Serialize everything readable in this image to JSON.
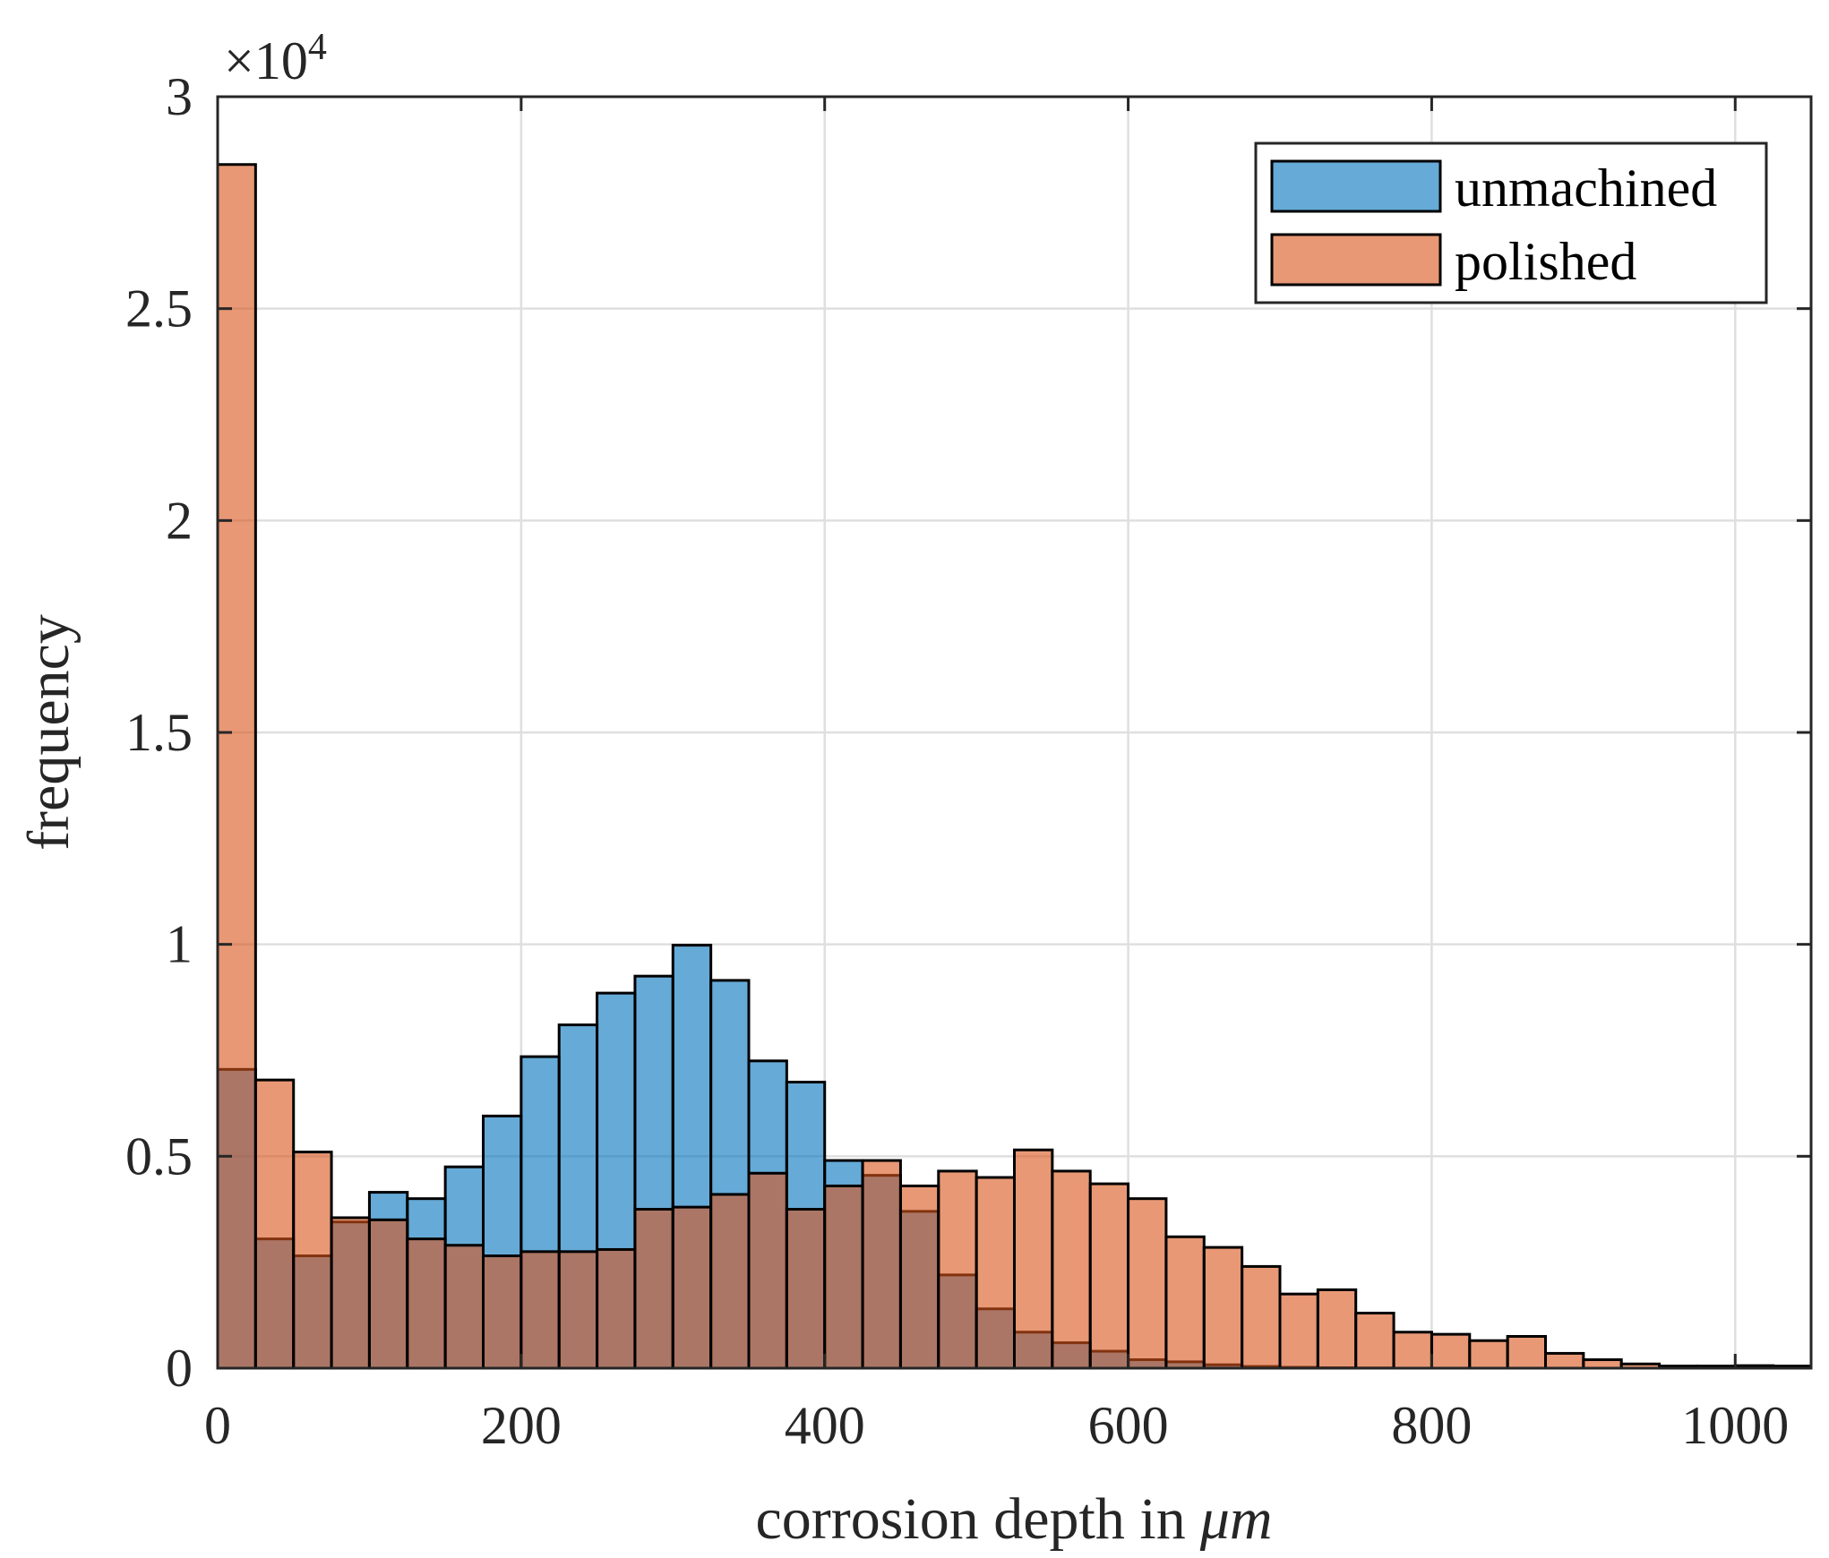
{
  "chart_data": {
    "type": "bar",
    "subtype": "overlaid-histogram",
    "xlabel": "corrosion depth in",
    "xlabel_unit": "μm",
    "ylabel": "frequency",
    "xlim": [
      0,
      1050
    ],
    "ylim": [
      0,
      30000
    ],
    "y_multiplier_base": "×10",
    "y_multiplier_exp": "4",
    "xticks": [
      0,
      200,
      400,
      600,
      800,
      1000
    ],
    "yticks": [
      0,
      5000,
      10000,
      15000,
      20000,
      25000,
      30000
    ],
    "xtick_labels": [
      "0",
      "200",
      "400",
      "600",
      "800",
      "1000"
    ],
    "ytick_labels": [
      "0",
      "0.5",
      "1",
      "1.5",
      "2",
      "2.5",
      "3"
    ],
    "grid": true,
    "legend_position": "top-right",
    "bin_width": 25,
    "bin_edges_start": 0,
    "series": [
      {
        "name": "unmachined",
        "color": "#0072BD",
        "opacity": 0.6,
        "values": [
          7050,
          3050,
          2650,
          3450,
          4150,
          4000,
          4750,
          5950,
          7350,
          8100,
          8850,
          9250,
          9980,
          9150,
          7250,
          6750,
          4900,
          4550,
          3700,
          2200,
          1400,
          850,
          600,
          400,
          200,
          150,
          80,
          40,
          20,
          10,
          5,
          0,
          0,
          0,
          0,
          0,
          0,
          0,
          0,
          0,
          0,
          0
        ]
      },
      {
        "name": "polished",
        "color": "#D95319",
        "opacity": 0.6,
        "values": [
          28400,
          6800,
          5100,
          3550,
          3500,
          3050,
          2900,
          2650,
          2750,
          2750,
          2800,
          3750,
          3800,
          4100,
          4600,
          3750,
          4300,
          4900,
          4300,
          4650,
          4500,
          5150,
          4650,
          4350,
          4000,
          3100,
          2850,
          2400,
          1750,
          1850,
          1300,
          850,
          800,
          650,
          750,
          350,
          200,
          100,
          50,
          50,
          60,
          50
        ]
      }
    ]
  }
}
